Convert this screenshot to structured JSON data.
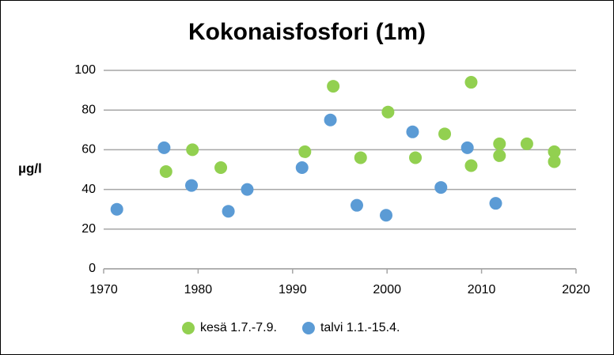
{
  "chart_data": {
    "type": "scatter",
    "title": "Kokonaisfosfori (1m)",
    "y_label": "µg/l",
    "xlim": [
      1970,
      2020
    ],
    "xticks": [
      1970,
      1980,
      1990,
      2000,
      2010,
      2020
    ],
    "ylim": [
      0,
      100
    ],
    "yticks": [
      0,
      20,
      40,
      60,
      80,
      100
    ],
    "grid": true,
    "legend": "bottom",
    "series": [
      {
        "name": "kesä 1.7.-7.9.",
        "color": "#92d050",
        "x": [
          1976.6,
          1979.4,
          1982.4,
          1991.3,
          1994.3,
          1997.2,
          2000.1,
          2003.0,
          2006.1,
          2008.9,
          2008.9,
          2011.9,
          2011.9,
          2014.8,
          2017.7,
          2017.7
        ],
        "values": [
          49,
          60,
          51,
          59,
          92,
          56,
          79,
          56,
          68,
          94,
          52,
          63,
          57,
          63,
          59,
          54
        ]
      },
      {
        "name": "talvi 1.1.-15.4.",
        "color": "#5b9bd5",
        "x": [
          1971.4,
          1976.4,
          1979.3,
          1983.2,
          1985.2,
          1991.0,
          1994.0,
          1996.8,
          1999.9,
          2002.7,
          2005.7,
          2008.5,
          2011.5
        ],
        "values": [
          30,
          61,
          42,
          29,
          40,
          51,
          75,
          32,
          27,
          69,
          41,
          61,
          33
        ]
      }
    ]
  }
}
